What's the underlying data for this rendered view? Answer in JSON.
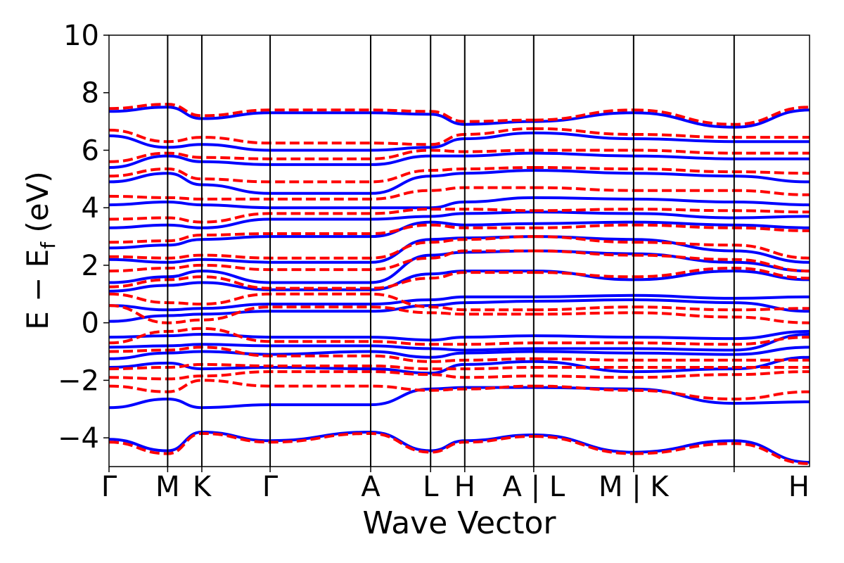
{
  "chart_data": {
    "type": "line",
    "title": "",
    "xlabel": "Wave Vector",
    "ylabel": "E − E",
    "ylabel_sub": "f",
    "ylabel_unit": " (eV)",
    "ylim": [
      -5,
      10
    ],
    "yticks": [
      -4,
      -2,
      0,
      2,
      4,
      6,
      8,
      10
    ],
    "ytick_labels": [
      "−4",
      "−2",
      "0",
      "2",
      "4",
      "6",
      "8",
      "10"
    ],
    "xlim": [
      0,
      10.87
    ],
    "high_symmetry_points": [
      {
        "label": "Γ",
        "x": 0
      },
      {
        "label": "M",
        "x": 0.91
      },
      {
        "label": "K",
        "x": 1.44
      },
      {
        "label": "Γ",
        "x": 2.5
      },
      {
        "label": "A",
        "x": 4.06
      },
      {
        "label": "L",
        "x": 4.99
      },
      {
        "label": "H",
        "x": 5.52
      },
      {
        "label": "A | L",
        "x": 6.59
      },
      {
        "label": "M | K",
        "x": 8.14
      },
      {
        "label": "H",
        "x": 9.7
      }
    ],
    "grid": false,
    "series": [
      {
        "style": "solid",
        "color": "#0000ff",
        "bands": [
          [
            -4.05,
            -4.45,
            -3.8,
            -4.1,
            -3.8,
            -4.45,
            -4.1,
            -3.9,
            -4.5,
            -4.1,
            -4.85,
            -3.9,
            -3.8
          ],
          [
            -2.95,
            -2.65,
            -2.95,
            -2.85,
            -2.85,
            -2.3,
            -2.25,
            -2.25,
            -2.3,
            -2.8,
            -2.75,
            -2.9,
            -2.8
          ],
          [
            -1.55,
            -1.4,
            -1.6,
            -1.55,
            -1.6,
            -1.75,
            -1.45,
            -1.35,
            -1.7,
            -1.6,
            -1.2,
            -1.45,
            -1.5
          ],
          [
            -1.25,
            -1.05,
            -1.0,
            -1.1,
            -1.0,
            -1.2,
            -1.05,
            -1.0,
            -1.05,
            -1.1,
            -0.85,
            -1.15,
            -1.2
          ],
          [
            -0.85,
            -0.8,
            -0.75,
            -0.8,
            -0.8,
            -0.9,
            -0.95,
            -0.9,
            -0.9,
            -0.95,
            -0.4,
            -0.95,
            -0.9
          ],
          [
            -0.5,
            -0.45,
            -0.4,
            -0.5,
            -0.5,
            -0.6,
            -0.5,
            -0.45,
            -0.5,
            -0.55,
            -0.3,
            -0.55,
            -0.6
          ],
          [
            0.05,
            0.25,
            0.3,
            0.4,
            0.4,
            0.6,
            0.7,
            0.75,
            0.8,
            0.7,
            0.4,
            0.2,
            0.15
          ],
          [
            0.6,
            0.45,
            0.5,
            0.65,
            0.65,
            0.8,
            0.9,
            0.9,
            0.95,
            0.85,
            0.9,
            0.6,
            0.55
          ],
          [
            1.1,
            1.3,
            1.4,
            1.15,
            1.15,
            1.7,
            1.8,
            1.8,
            1.5,
            1.8,
            1.5,
            0.9,
            0.9
          ],
          [
            1.4,
            1.6,
            1.8,
            1.4,
            1.4,
            2.35,
            2.45,
            2.5,
            2.4,
            2.1,
            1.8,
            1.9,
            1.85
          ],
          [
            2.2,
            2.1,
            2.2,
            2.1,
            2.1,
            2.9,
            2.95,
            3.0,
            2.9,
            2.5,
            2.1,
            2.55,
            2.6
          ],
          [
            2.6,
            2.7,
            2.9,
            3.0,
            3.0,
            3.5,
            3.4,
            3.45,
            3.5,
            3.4,
            3.3,
            3.3,
            3.4
          ],
          [
            3.3,
            3.4,
            3.3,
            3.6,
            3.6,
            3.7,
            3.8,
            3.85,
            3.8,
            3.65,
            3.7,
            3.8,
            3.75
          ],
          [
            4.1,
            4.2,
            4.1,
            4.0,
            4.0,
            4.0,
            4.2,
            4.35,
            4.3,
            4.2,
            4.1,
            4.3,
            4.6
          ],
          [
            4.9,
            5.2,
            4.8,
            4.5,
            4.5,
            5.1,
            5.2,
            5.3,
            5.2,
            5.1,
            4.9,
            5.0,
            5.3
          ],
          [
            5.4,
            5.8,
            5.6,
            5.5,
            5.5,
            5.8,
            5.8,
            5.9,
            5.8,
            5.7,
            5.7,
            5.8,
            5.9
          ],
          [
            6.5,
            6.1,
            6.2,
            6.0,
            6.0,
            6.1,
            6.4,
            6.6,
            6.4,
            6.3,
            6.3,
            6.1,
            6.1
          ],
          [
            7.35,
            7.5,
            7.1,
            7.3,
            7.3,
            7.25,
            6.9,
            7.0,
            7.3,
            6.8,
            7.4,
            7.2,
            6.95
          ]
        ]
      },
      {
        "style": "dashed",
        "color": "#ff0000",
        "bands": [
          [
            -4.15,
            -4.55,
            -3.85,
            -4.15,
            -3.85,
            -4.5,
            -4.15,
            -3.95,
            -4.55,
            -4.2,
            -4.9,
            -3.95,
            -3.85
          ],
          [
            -2.2,
            -2.4,
            -2.0,
            -2.2,
            -2.2,
            -2.35,
            -2.3,
            -2.2,
            -2.35,
            -2.65,
            -2.4,
            -2.25,
            -2.3
          ],
          [
            -1.9,
            -1.95,
            -1.85,
            -1.7,
            -1.7,
            -1.8,
            -1.9,
            -1.85,
            -1.9,
            -1.8,
            -1.7,
            -1.75,
            -1.8
          ],
          [
            -1.6,
            -1.55,
            -1.45,
            -1.5,
            -1.5,
            -1.6,
            -1.6,
            -1.55,
            -1.55,
            -1.55,
            -1.55,
            -1.6,
            -1.6
          ],
          [
            -1.0,
            -0.95,
            -0.85,
            -1.15,
            -1.15,
            -1.35,
            -1.3,
            -1.25,
            -1.3,
            -1.3,
            -1.3,
            -1.25,
            -1.35
          ],
          [
            -0.7,
            -0.3,
            -0.2,
            -0.65,
            -0.65,
            -0.75,
            -0.75,
            -0.7,
            -0.7,
            -0.75,
            -0.5,
            -0.4,
            -0.25
          ],
          [
            0.6,
            0.0,
            0.1,
            0.55,
            0.55,
            0.35,
            0.3,
            0.3,
            0.35,
            0.2,
            0.0,
            0.2,
            0.35
          ],
          [
            1.0,
            0.7,
            0.65,
            1.0,
            1.0,
            0.55,
            0.45,
            0.45,
            0.55,
            0.45,
            0.5,
            0.5,
            0.45
          ],
          [
            1.25,
            1.5,
            1.6,
            1.2,
            1.2,
            1.55,
            1.75,
            1.75,
            1.6,
            1.9,
            1.55,
            1.45,
            1.4
          ],
          [
            1.8,
            1.9,
            2.0,
            1.85,
            1.85,
            2.25,
            2.5,
            2.5,
            2.35,
            2.2,
            1.8,
            1.85,
            1.9
          ],
          [
            2.3,
            2.25,
            2.35,
            2.25,
            2.25,
            2.8,
            2.9,
            3.0,
            2.8,
            2.7,
            2.25,
            2.5,
            2.55
          ],
          [
            2.8,
            2.85,
            3.05,
            3.1,
            3.1,
            3.4,
            3.3,
            3.3,
            3.4,
            3.3,
            3.2,
            3.2,
            3.2
          ],
          [
            3.6,
            3.65,
            3.5,
            3.8,
            3.8,
            3.95,
            3.95,
            3.9,
            3.95,
            3.9,
            3.85,
            3.85,
            3.85
          ],
          [
            4.4,
            4.35,
            4.3,
            4.3,
            4.3,
            4.6,
            4.7,
            4.7,
            4.6,
            4.6,
            4.45,
            4.55,
            4.8
          ],
          [
            5.1,
            5.35,
            5.0,
            4.9,
            4.9,
            5.3,
            5.35,
            5.4,
            5.35,
            5.25,
            5.2,
            5.25,
            5.45
          ],
          [
            5.6,
            5.9,
            5.75,
            5.7,
            5.7,
            6.0,
            5.95,
            6.0,
            6.0,
            5.9,
            5.9,
            5.95,
            6.05
          ],
          [
            6.7,
            6.3,
            6.45,
            6.25,
            6.25,
            6.2,
            6.55,
            6.75,
            6.55,
            6.45,
            6.45,
            6.25,
            6.25
          ],
          [
            7.45,
            7.6,
            7.2,
            7.4,
            7.4,
            7.35,
            7.0,
            7.05,
            7.4,
            6.9,
            7.5,
            7.3,
            7.05
          ]
        ]
      }
    ]
  }
}
